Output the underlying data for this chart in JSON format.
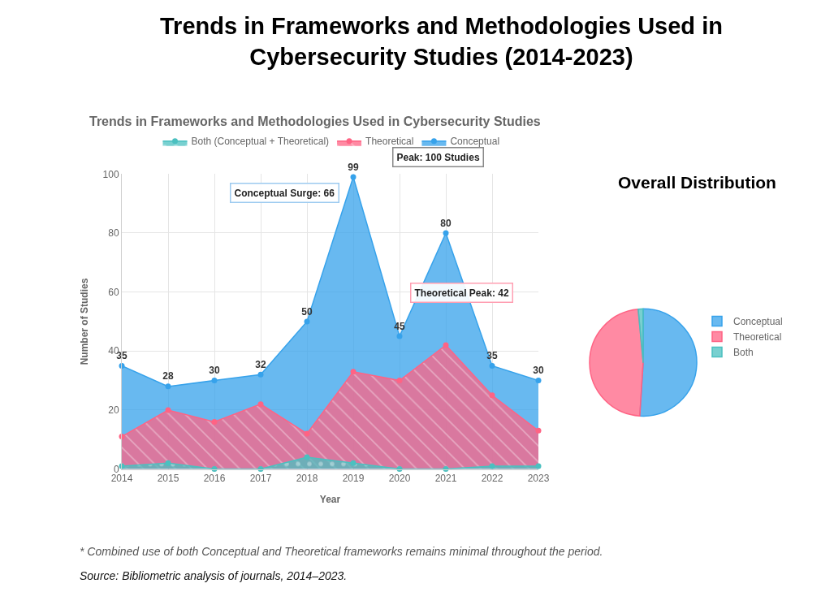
{
  "chart_data": [
    {
      "type": "area",
      "title": "Trends in Frameworks and Methodologies Used in Cybersecurity Studies (2014-2023)",
      "subtitle": "Trends in Frameworks and Methodologies Used in Cybersecurity Studies",
      "xlabel": "Year",
      "ylabel": "Number of Studies",
      "x": [
        2014,
        2015,
        2016,
        2017,
        2018,
        2019,
        2020,
        2021,
        2022,
        2023
      ],
      "series": [
        {
          "name": "Both (Conceptual + Theoretical)",
          "color": "#4bc0c0",
          "values": [
            1,
            2,
            0,
            0,
            4,
            2,
            0,
            0,
            1,
            1
          ]
        },
        {
          "name": "Theoretical",
          "color": "#ff6384",
          "values": [
            11,
            20,
            16,
            22,
            12,
            33,
            30,
            42,
            25,
            13
          ]
        },
        {
          "name": "Conceptual",
          "color": "#36a2eb",
          "values": [
            35,
            28,
            30,
            32,
            50,
            99,
            45,
            80,
            35,
            30
          ],
          "value_labels": [
            "35",
            "28",
            "30",
            "32",
            "50",
            "99",
            "45",
            "80",
            "35",
            "30"
          ]
        }
      ],
      "xlim": [
        2014,
        2023
      ],
      "xticks": [
        2014,
        2015,
        2016,
        2017,
        2018,
        2019,
        2020,
        2021,
        2022,
        2023
      ],
      "ylim": [
        0,
        100
      ],
      "yticks": [
        0,
        20,
        40,
        60,
        80,
        100
      ],
      "grid": true,
      "legend": "top",
      "marker": "circle",
      "line_style": "solid",
      "annotations": [
        "Peak: 100 Studies",
        "Conceptual Surge: 66",
        "Theoretical Peak: 42",
        "* Combined use of both Conceptual and Theoretical frameworks remains minimal throughout the period.",
        "Source: Bibliometric analysis of journals, 2014–2023."
      ]
    },
    {
      "type": "pie",
      "title": "Overall Distribution",
      "categories": [
        "Conceptual",
        "Theoretical",
        "Both"
      ],
      "values": [
        51,
        47.5,
        1.5
      ],
      "colors": [
        "#36a2eb",
        "#ff6384",
        "#4bc0c0"
      ],
      "legend": "right"
    }
  ]
}
